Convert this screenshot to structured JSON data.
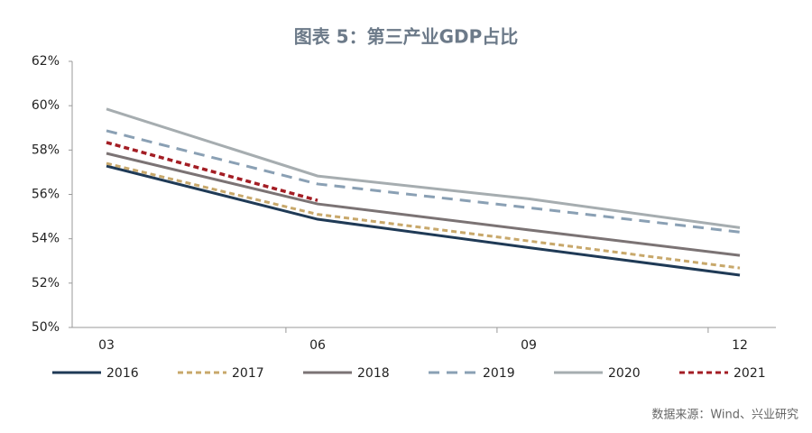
{
  "chart_data": {
    "type": "line",
    "title": "图表 5：第三产业GDP占比",
    "categories": [
      "03",
      "06",
      "09",
      "12"
    ],
    "series": [
      {
        "name": "2016",
        "color": "#1f3a56",
        "dash": "solid",
        "values": [
          57.28,
          54.88,
          53.6,
          52.36
        ]
      },
      {
        "name": "2017",
        "color": "#c8a86b",
        "dash": "dashed",
        "values": [
          57.4,
          55.1,
          53.9,
          52.68
        ]
      },
      {
        "name": "2018",
        "color": "#7b7374",
        "dash": "solid",
        "values": [
          57.85,
          55.57,
          54.4,
          53.25
        ]
      },
      {
        "name": "2019",
        "color": "#8aa0b4",
        "dash": "long-dashed",
        "values": [
          58.87,
          56.47,
          55.4,
          54.3
        ]
      },
      {
        "name": "2020",
        "color": "#a6adb0",
        "dash": "solid",
        "values": [
          59.85,
          56.83,
          55.8,
          54.5
        ]
      },
      {
        "name": "2021",
        "color": "#a31d24",
        "dash": "dashed",
        "values": [
          58.34,
          55.73,
          null,
          null
        ]
      }
    ],
    "ylim": [
      50,
      62
    ],
    "yticks": [
      {
        "value": 50,
        "label": "50%"
      },
      {
        "value": 52,
        "label": "52%"
      },
      {
        "value": 54,
        "label": "54%"
      },
      {
        "value": 56,
        "label": "56%"
      },
      {
        "value": 58,
        "label": "58%"
      },
      {
        "value": 60,
        "label": "60%"
      },
      {
        "value": 62,
        "label": "62%"
      }
    ],
    "grid": false,
    "legend": "bottom",
    "source": "数据来源：Wind、兴业研究"
  }
}
